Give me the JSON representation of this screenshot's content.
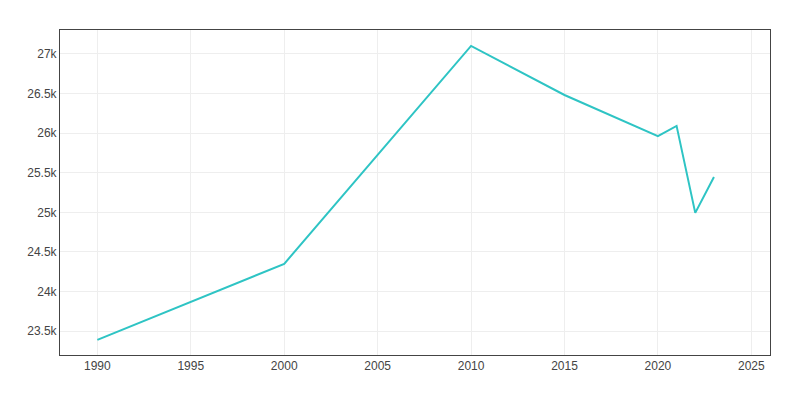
{
  "chart_data": {
    "type": "line",
    "x": [
      1990,
      2000,
      2010,
      2015,
      2020,
      2021,
      2022,
      2023
    ],
    "values": [
      23390,
      24350,
      27099,
      26480,
      25960,
      26090,
      24993,
      25445
    ],
    "color": "#2ec4c4",
    "xlim": [
      1988,
      2026
    ],
    "ylim": [
      23200,
      27300
    ],
    "xticks": [
      1990,
      1995,
      2000,
      2005,
      2010,
      2015,
      2020,
      2025
    ],
    "yticks": [
      {
        "value": 23500,
        "label": "23.5k"
      },
      {
        "value": 24000,
        "label": "24k"
      },
      {
        "value": 24500,
        "label": "24.5k"
      },
      {
        "value": 25000,
        "label": "25k"
      },
      {
        "value": 25500,
        "label": "25.5k"
      },
      {
        "value": 26000,
        "label": "26k"
      },
      {
        "value": 26500,
        "label": "26.5k"
      },
      {
        "value": 27000,
        "label": "27k"
      }
    ],
    "grid": true
  }
}
